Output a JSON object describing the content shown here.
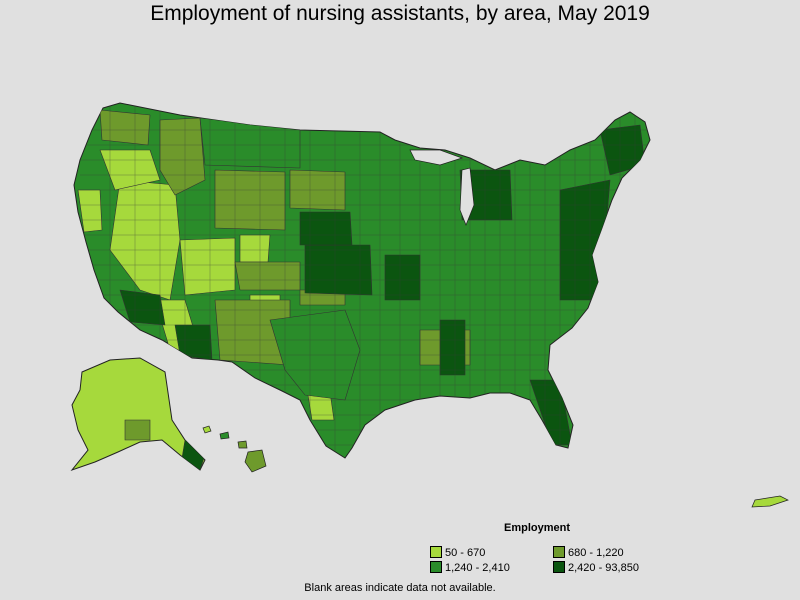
{
  "title": "Employment of nursing assistants, by area, May 2019",
  "legend": {
    "title": "Employment",
    "items": [
      {
        "label": "50 - 670",
        "color": "#a6d93c"
      },
      {
        "label": "680 - 1,220",
        "color": "#6e9a2c"
      },
      {
        "label": "1,240 - 2,410",
        "color": "#2a8c2a"
      },
      {
        "label": "2,420 - 93,850",
        "color": "#0b5510"
      }
    ]
  },
  "note": "Blank areas indicate data not available.",
  "colors": {
    "background": "#e0e0e0",
    "outline": "#222222"
  }
}
